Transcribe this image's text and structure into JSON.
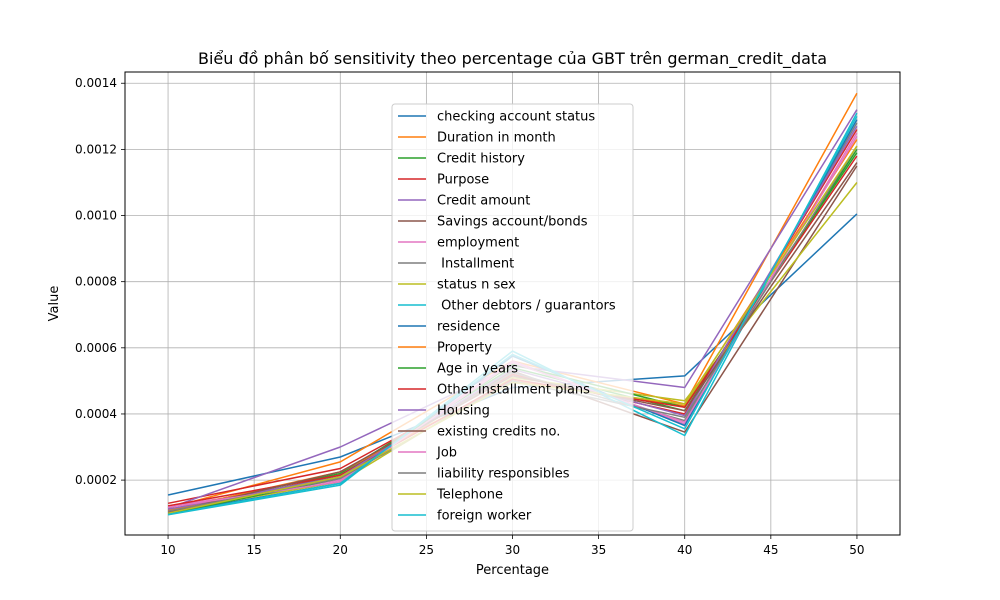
{
  "chart_data": {
    "type": "line",
    "title": "Biểu đồ phân bố sensitivity theo percentage của GBT trên german_credit_data",
    "xlabel": "Percentage",
    "ylabel": "Value",
    "x": [
      10,
      20,
      30,
      40,
      50
    ],
    "xlim": [
      7.5,
      52.5
    ],
    "ylim": [
      3.4e-05,
      0.001434
    ],
    "xticks": [
      10,
      15,
      20,
      25,
      30,
      35,
      40,
      45,
      50
    ],
    "yticks": [
      0.0002,
      0.0004,
      0.0006,
      0.0008,
      0.001,
      0.0012,
      0.0014
    ],
    "ytick_labels": [
      "0.0002",
      "0.0004",
      "0.0006",
      "0.0008",
      "0.0010",
      "0.0012",
      "0.0014"
    ],
    "grid": true,
    "legend_position": "center",
    "series": [
      {
        "name": "checking account status",
        "color": "#1f77b4",
        "values": [
          0.000155,
          0.00027,
          0.00048,
          0.000515,
          0.001005
        ]
      },
      {
        "name": "Duration in month",
        "color": "#ff7f0e",
        "values": [
          0.000115,
          0.000255,
          0.00056,
          0.00043,
          0.00137
        ]
      },
      {
        "name": "Credit history",
        "color": "#2ca02c",
        "values": [
          0.00011,
          0.00022,
          0.00054,
          0.00041,
          0.0012
        ]
      },
      {
        "name": "Purpose",
        "color": "#d62728",
        "values": [
          0.00013,
          0.000235,
          0.00052,
          0.0004,
          0.00126
        ]
      },
      {
        "name": "Credit amount",
        "color": "#9467bd",
        "values": [
          0.000115,
          0.0003,
          0.000545,
          0.00048,
          0.00132
        ]
      },
      {
        "name": "Savings account/bonds",
        "color": "#8c564b",
        "values": [
          0.000105,
          0.000215,
          0.00053,
          0.000345,
          0.00115
        ]
      },
      {
        "name": "employment",
        "color": "#e377c2",
        "values": [
          0.00012,
          0.0002,
          0.00056,
          0.00037,
          0.00125
        ]
      },
      {
        "name": " Installment",
        "color": "#7f7f7f",
        "values": [
          0.00011,
          0.00021,
          0.000525,
          0.00038,
          0.00128
        ]
      },
      {
        "name": "status n sex",
        "color": "#bcbd22",
        "values": [
          0.000105,
          0.000195,
          0.00051,
          0.00044,
          0.0011
        ]
      },
      {
        "name": " Other debtors / guarantors",
        "color": "#17becf",
        "values": [
          9.5e-05,
          0.000185,
          0.00059,
          0.000335,
          0.00131
        ]
      },
      {
        "name": "residence",
        "color": "#1f77b4",
        "values": [
          0.0001,
          0.00019,
          0.000575,
          0.000365,
          0.00129
        ]
      },
      {
        "name": "Property",
        "color": "#ff7f0e",
        "values": [
          0.000108,
          0.000225,
          0.0005,
          0.000425,
          0.00123
        ]
      },
      {
        "name": "Age in years",
        "color": "#2ca02c",
        "values": [
          9.8e-05,
          0.000205,
          0.00055,
          0.00042,
          0.00119
        ]
      },
      {
        "name": "Other installment plans",
        "color": "#d62728",
        "values": [
          0.000122,
          0.000215,
          0.000505,
          0.00042,
          0.00118
        ]
      },
      {
        "name": "Housing",
        "color": "#9467bd",
        "values": [
          0.000112,
          0.00021,
          0.000535,
          0.000395,
          0.00127
        ]
      },
      {
        "name": "existing credits no.",
        "color": "#8c564b",
        "values": [
          0.000102,
          0.000225,
          0.000515,
          0.00041,
          0.00116
        ]
      },
      {
        "name": "Job",
        "color": "#e377c2",
        "values": [
          0.000118,
          0.000195,
          0.000555,
          0.000375,
          0.00124
        ]
      },
      {
        "name": "liability responsibles",
        "color": "#7f7f7f",
        "values": [
          0.000106,
          0.000205,
          0.0005,
          0.00039,
          0.00121
        ]
      },
      {
        "name": "Telephone",
        "color": "#bcbd22",
        "values": [
          0.0001,
          0.00021,
          0.000495,
          0.00043,
          0.00121
        ]
      },
      {
        "name": "foreign worker",
        "color": "#17becf",
        "values": [
          9.6e-05,
          0.00019,
          0.00058,
          0.000355,
          0.0013
        ]
      }
    ]
  }
}
